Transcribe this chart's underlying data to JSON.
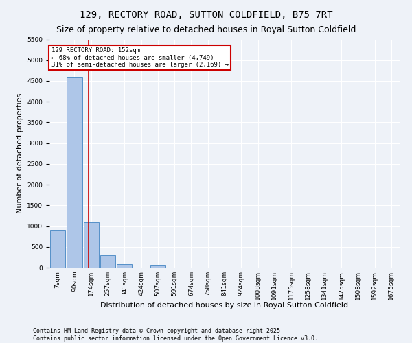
{
  "title": "129, RECTORY ROAD, SUTTON COLDFIELD, B75 7RT",
  "subtitle": "Size of property relative to detached houses in Royal Sutton Coldfield",
  "xlabel": "Distribution of detached houses by size in Royal Sutton Coldfield",
  "ylabel": "Number of detached properties",
  "bin_labels": [
    "7sqm",
    "90sqm",
    "174sqm",
    "257sqm",
    "341sqm",
    "424sqm",
    "507sqm",
    "591sqm",
    "674sqm",
    "758sqm",
    "841sqm",
    "924sqm",
    "1008sqm",
    "1091sqm",
    "1175sqm",
    "1258sqm",
    "1341sqm",
    "1425sqm",
    "1508sqm",
    "1592sqm",
    "1675sqm"
  ],
  "bar_heights": [
    900,
    4600,
    1100,
    300,
    90,
    0,
    50,
    0,
    0,
    0,
    0,
    0,
    0,
    0,
    0,
    0,
    0,
    0,
    0,
    0,
    0
  ],
  "bar_color": "#aec6e8",
  "bar_edge_color": "#5590c8",
  "property_line_index": 1.85,
  "property_line_color": "#cc0000",
  "annotation_text": "129 RECTORY ROAD: 152sqm\n← 68% of detached houses are smaller (4,749)\n31% of semi-detached houses are larger (2,169) →",
  "annotation_box_color": "#ffffff",
  "annotation_box_edge_color": "#cc0000",
  "ylim": [
    0,
    5500
  ],
  "yticks": [
    0,
    500,
    1000,
    1500,
    2000,
    2500,
    3000,
    3500,
    4000,
    4500,
    5000,
    5500
  ],
  "footer_text": "Contains HM Land Registry data © Crown copyright and database right 2025.\nContains public sector information licensed under the Open Government Licence v3.0.",
  "bg_color": "#eef2f8",
  "grid_color": "#ffffff",
  "title_fontsize": 10,
  "subtitle_fontsize": 9,
  "label_fontsize": 8,
  "tick_fontsize": 6.5,
  "footer_fontsize": 6
}
